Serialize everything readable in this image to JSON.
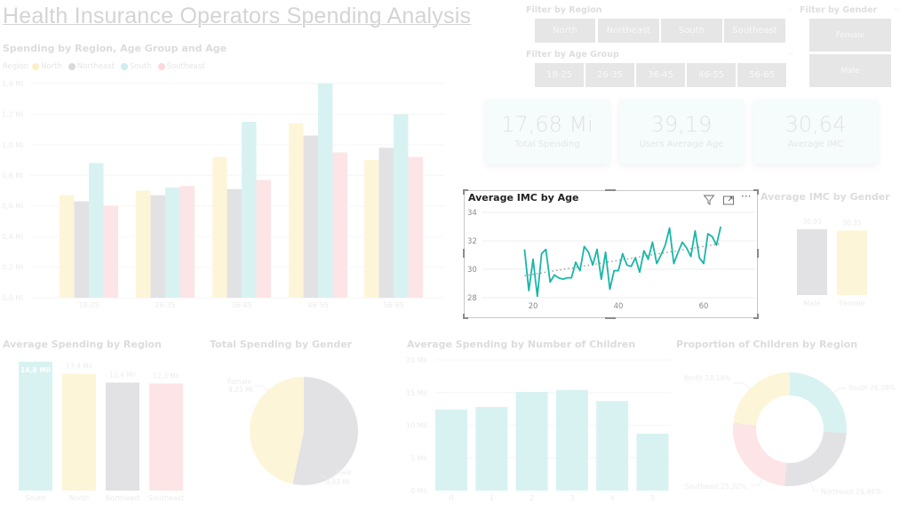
{
  "page": {
    "title": "Health Insurance Operators Spending Analysis"
  },
  "colors": {
    "north": "#fdf5d8",
    "northeast": "#e2e2e4",
    "south": "#d8f2f2",
    "southeast": "#fde4e6",
    "line": "#1ab6a8",
    "slicer_button": "#e6e6e6"
  },
  "filters": {
    "region": {
      "title": "Filter by Region",
      "options": [
        "North",
        "Northeast",
        "South",
        "Southeast"
      ]
    },
    "age_group": {
      "title": "Filter by Age Group",
      "options": [
        "18-25",
        "26-35",
        "36-45",
        "46-55",
        "56-65"
      ]
    },
    "gender": {
      "title": "Filter by Gender",
      "options": [
        "Female",
        "Male"
      ]
    }
  },
  "kpis": [
    {
      "value": "17,68 Mi",
      "label": "Total Spending"
    },
    {
      "value": "39,19",
      "label": "Users Average Age"
    },
    {
      "value": "30,64",
      "label": "Average IMC"
    }
  ],
  "focus_visual": {
    "filter_icon": "filter-icon",
    "focus_icon": "focus-mode-icon",
    "more_icon": "more-options-icon"
  },
  "chart_data": [
    {
      "id": "spending_region_age",
      "type": "bar",
      "title": "Spending by Region, Age Group and Age",
      "legend_title": "Region",
      "legend_position": "top-left",
      "categories": [
        "18-25",
        "26-35",
        "36-45",
        "46-55",
        "56-65"
      ],
      "series": [
        {
          "name": "North",
          "values": [
            0.67,
            0.7,
            0.92,
            1.14,
            0.9
          ]
        },
        {
          "name": "Northeast",
          "values": [
            0.63,
            0.67,
            0.71,
            1.06,
            0.98
          ]
        },
        {
          "name": "South",
          "values": [
            0.88,
            0.72,
            1.15,
            1.4,
            1.2
          ]
        },
        {
          "name": "Southeast",
          "values": [
            0.6,
            0.73,
            0.77,
            0.95,
            0.92
          ]
        }
      ],
      "ylim": [
        0,
        1.4
      ],
      "yticks": [
        "0,0 Mi",
        "0,2 Mi",
        "0,4 Mi",
        "0,6 Mi",
        "0,8 Mi",
        "1,0 Mi",
        "1,2 Mi",
        "1,4 Mi"
      ],
      "grid": true
    },
    {
      "id": "imc_by_age",
      "type": "line",
      "title": "Average IMC by Age",
      "x": [
        18,
        19,
        20,
        21,
        22,
        23,
        24,
        25,
        26,
        27,
        28,
        29,
        30,
        31,
        32,
        33,
        34,
        35,
        36,
        37,
        38,
        39,
        40,
        41,
        42,
        43,
        44,
        45,
        46,
        47,
        48,
        49,
        50,
        51,
        52,
        53,
        54,
        55,
        56,
        57,
        58,
        59,
        60,
        61,
        62,
        63,
        64
      ],
      "y": [
        31.4,
        28.5,
        30.7,
        28.1,
        31.1,
        31.4,
        29.1,
        29.6,
        29.4,
        29.3,
        29.4,
        29.4,
        30.5,
        29.9,
        31.6,
        31.2,
        30.3,
        31.4,
        29.3,
        31.2,
        28.6,
        29.9,
        29.9,
        31.1,
        30.3,
        30.2,
        30.8,
        29.8,
        31.3,
        30.7,
        31.9,
        30.4,
        31.0,
        31.7,
        32.9,
        30.4,
        31.2,
        31.9,
        31.5,
        30.9,
        32.7,
        30.8,
        30.4,
        32.5,
        32.3,
        31.7,
        33.0
      ],
      "trend": {
        "start": [
          18,
          29.55
        ],
        "end": [
          64,
          31.8
        ]
      },
      "xlim": [
        9,
        73
      ],
      "ylim": [
        27.2,
        34.4
      ],
      "xticks": [
        20,
        40,
        60
      ],
      "yticks": [
        28,
        30,
        32,
        34
      ],
      "grid": true
    },
    {
      "id": "imc_by_gender",
      "type": "bar",
      "title": "Average IMC by Gender",
      "categories": [
        "Male",
        "Female"
      ],
      "values": [
        30.93,
        30.35
      ],
      "data_labels": [
        "30,93",
        "30,35"
      ]
    },
    {
      "id": "avg_spending_region",
      "type": "bar",
      "title": "Average Spending by Region",
      "categories": [
        "South",
        "North",
        "Northeast",
        "Southeast"
      ],
      "values": [
        14.8,
        13.4,
        12.4,
        12.3
      ],
      "data_labels": [
        "14,8 Mil",
        "13,4 Mil",
        "12,4 Mil",
        "12,3 Mil"
      ]
    },
    {
      "id": "spending_gender",
      "type": "pie",
      "title": "Total Spending by Gender",
      "categories": [
        "Male",
        "Female"
      ],
      "values": [
        9.43,
        8.25
      ],
      "data_labels": [
        "9,43 Mi",
        "8,25 Mi"
      ]
    },
    {
      "id": "spending_children",
      "type": "bar",
      "title": "Average Spending by Number of Children",
      "categories": [
        "0",
        "1",
        "2",
        "3",
        "4",
        "5"
      ],
      "values": [
        12.4,
        12.8,
        15.1,
        15.4,
        13.7,
        8.7
      ],
      "ylim": [
        0,
        20
      ],
      "yticks": [
        "0 Mil",
        "5 Mil",
        "10 Mil",
        "15 Mil",
        "20 Mil"
      ],
      "grid": true
    },
    {
      "id": "children_region",
      "type": "pie",
      "title": "Proportion of Children by Region",
      "categories": [
        "South",
        "Northeast",
        "Southeast",
        "North"
      ],
      "values": [
        26.08,
        25.46,
        25.32,
        23.14
      ],
      "data_labels": [
        "South 26,08%",
        "Northeast 25,46%",
        "Southeast 25,32%",
        "North 23,14%"
      ]
    }
  ]
}
